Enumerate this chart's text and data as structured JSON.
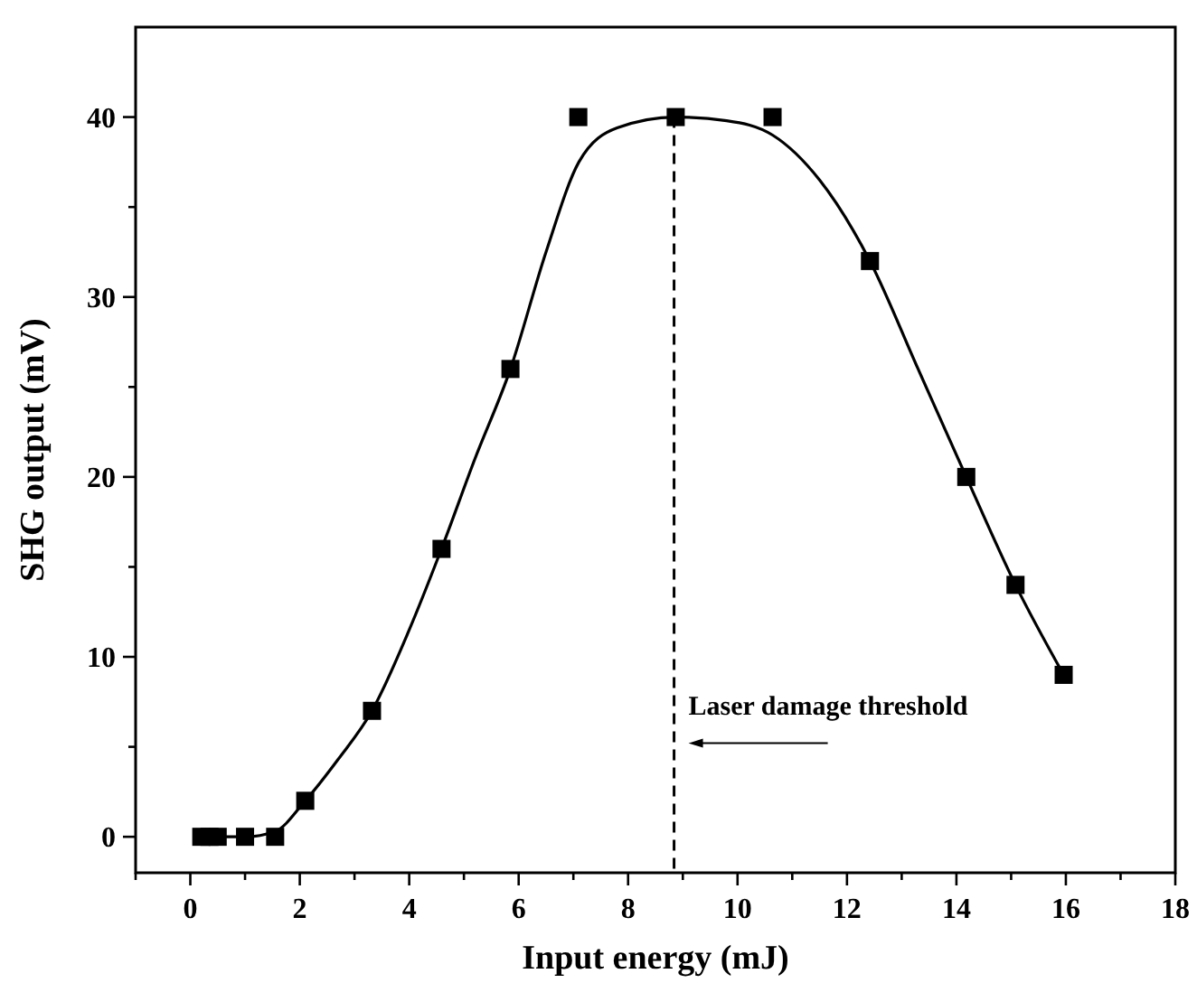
{
  "chart_data": {
    "type": "scatter",
    "xlabel": "Input energy (mJ)",
    "ylabel": "SHG output (mV)",
    "xlim": [
      -1,
      18
    ],
    "ylim": [
      -2,
      45
    ],
    "xticks": [
      {
        "value": -1,
        "label": null
      },
      0,
      {
        "value": 1,
        "label": null
      },
      2,
      {
        "value": 3,
        "label": null
      },
      4,
      {
        "value": 5,
        "label": null
      },
      6,
      {
        "value": 7,
        "label": null
      },
      8,
      {
        "value": 9,
        "label": null
      },
      10,
      {
        "value": 11,
        "label": null
      },
      12,
      {
        "value": 13,
        "label": null
      },
      14,
      {
        "value": 15,
        "label": null
      },
      16,
      {
        "value": 17,
        "label": null
      },
      18
    ],
    "yticks": [
      0,
      {
        "value": 5,
        "label": null
      },
      10,
      {
        "value": 15,
        "label": null
      },
      20,
      {
        "value": 25,
        "label": null
      },
      30,
      {
        "value": 35,
        "label": null
      },
      40
    ],
    "grid": false,
    "series": [
      {
        "color": "#000000",
        "marker": "square",
        "x": [
          0.2,
          0.35,
          0.5,
          1.0,
          1.55,
          2.1,
          3.32,
          4.59,
          5.85,
          7.09,
          8.87,
          10.64,
          12.42,
          14.18,
          15.08,
          15.96
        ],
        "values": [
          0,
          0,
          0,
          0,
          0,
          2,
          7,
          16,
          26,
          40,
          40,
          40,
          32,
          20,
          14,
          9
        ]
      },
      {
        "type": "line",
        "color": "#000000",
        "marker": "none",
        "line_style": "solid",
        "x": [
          0.2,
          1,
          1.55,
          2.1,
          2.7,
          3.32,
          4,
          4.59,
          5.2,
          5.85,
          6.5,
          7.1,
          7.8,
          8.87,
          9.8,
          10.64,
          11.5,
          12.42,
          13.3,
          14.18,
          15.08,
          15.96
        ],
        "values": [
          0,
          0,
          0.3,
          2,
          4.3,
          7,
          11.5,
          16,
          21,
          26,
          32.5,
          37.5,
          39.4,
          40,
          39.8,
          39,
          36.5,
          32,
          26,
          20,
          14,
          9
        ]
      }
    ],
    "ref_lines": [
      {
        "axis": "x",
        "value": 8.84,
        "label": "Laser damage threshold",
        "line_style": "dashed",
        "color": "#000000"
      }
    ]
  }
}
